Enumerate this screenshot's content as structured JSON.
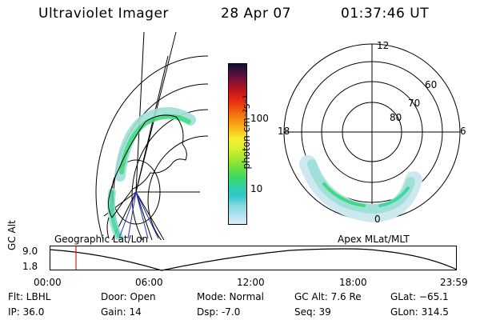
{
  "header": {
    "title": "Ultraviolet Imager",
    "date": "28 Apr 07",
    "time": "01:37:46 UT"
  },
  "colorbar": {
    "label": "photon cm⁻²s⁻¹",
    "ticks": [
      "100",
      "10"
    ],
    "colors": [
      "#101030",
      "#501040",
      "#901030",
      "#c81818",
      "#e83010",
      "#f06010",
      "#f89010",
      "#f8c020",
      "#f8f030",
      "#d8f030",
      "#a8e830",
      "#70e040",
      "#40d860",
      "#30d0a0",
      "#30c8c8",
      "#80d8e0",
      "#b0e0f0",
      "#dceef8"
    ]
  },
  "polar_plot": {
    "mlt_labels": [
      "12",
      "18",
      "6",
      "0"
    ],
    "lat_labels": [
      "60",
      "70",
      "80"
    ]
  },
  "timeline": {
    "ylabel": "GC Alt",
    "y_ticks": [
      "9.0",
      "1.8"
    ],
    "left_label": "Geographic Lat/Lon",
    "right_label": "Apex MLat/MLT",
    "x_ticks": [
      "00:00",
      "06:00",
      "12:00",
      "18:00",
      "23:59"
    ],
    "marker_color": "#d02020"
  },
  "info": {
    "filter": "Flt: LBHL",
    "ip": "IP: 36.0",
    "door": "Door: Open",
    "gain": "Gain: 14",
    "mode": "Mode: Normal",
    "dsp": "Dsp:    -7.0",
    "gc_alt": "GC Alt: 7.6 Re",
    "seq": "Seq: 39",
    "glat": "GLat: −65.1",
    "glon": "GLon: 314.5"
  }
}
